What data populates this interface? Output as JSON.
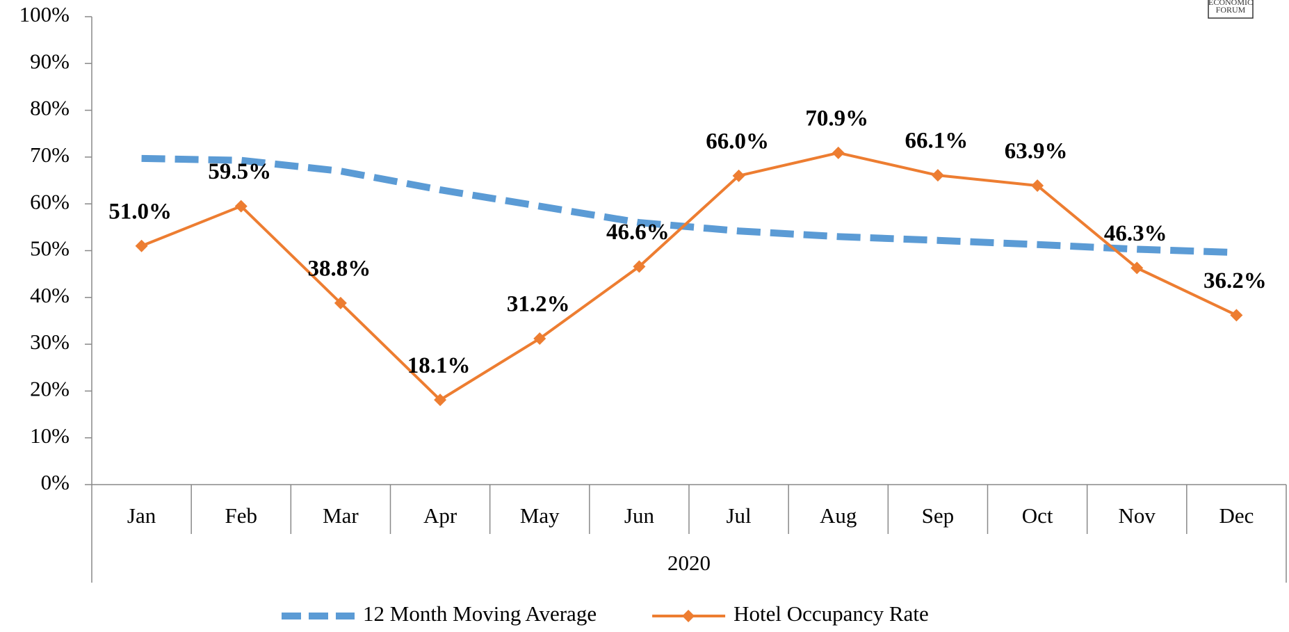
{
  "chart_data": {
    "type": "line",
    "logo": [
      "ECONOMIC",
      "FORUM"
    ],
    "categories": [
      "Jan",
      "Feb",
      "Mar",
      "Apr",
      "May",
      "Jun",
      "Jul",
      "Aug",
      "Sep",
      "Oct",
      "Nov",
      "Dec"
    ],
    "group_label": "2020",
    "series": [
      {
        "name": "12 Month Moving Average",
        "color": "#5b9bd5",
        "dashed": true,
        "values": [
          69.7,
          69.3,
          67.0,
          63.0,
          59.5,
          56.0,
          54.2,
          53.0,
          52.2,
          51.3,
          50.3,
          49.6
        ]
      },
      {
        "name": "Hotel Occupancy Rate",
        "color": "#ed7d31",
        "markers": true,
        "values": [
          51.0,
          59.5,
          38.8,
          18.1,
          31.2,
          46.6,
          66.0,
          70.9,
          66.1,
          63.9,
          46.3,
          36.2
        ],
        "value_labels": [
          "51.0%",
          "59.5%",
          "38.8%",
          "18.1%",
          "31.2%",
          "46.6%",
          "66.0%",
          "70.9%",
          "66.1%",
          "63.9%",
          "46.3%",
          "36.2%"
        ]
      }
    ],
    "ylim": [
      0,
      100
    ],
    "yticks": [
      {
        "value": 0,
        "label": "0%"
      },
      {
        "value": 10,
        "label": "10%"
      },
      {
        "value": 20,
        "label": "20%"
      },
      {
        "value": 30,
        "label": "30%"
      },
      {
        "value": 40,
        "label": "40%"
      },
      {
        "value": 50,
        "label": "50%"
      },
      {
        "value": 60,
        "label": "60%"
      },
      {
        "value": 70,
        "label": "70%"
      },
      {
        "value": 80,
        "label": "80%"
      },
      {
        "value": 90,
        "label": "90%"
      },
      {
        "value": 100,
        "label": "100%"
      }
    ],
    "grid": false,
    "legend": "bottom"
  }
}
